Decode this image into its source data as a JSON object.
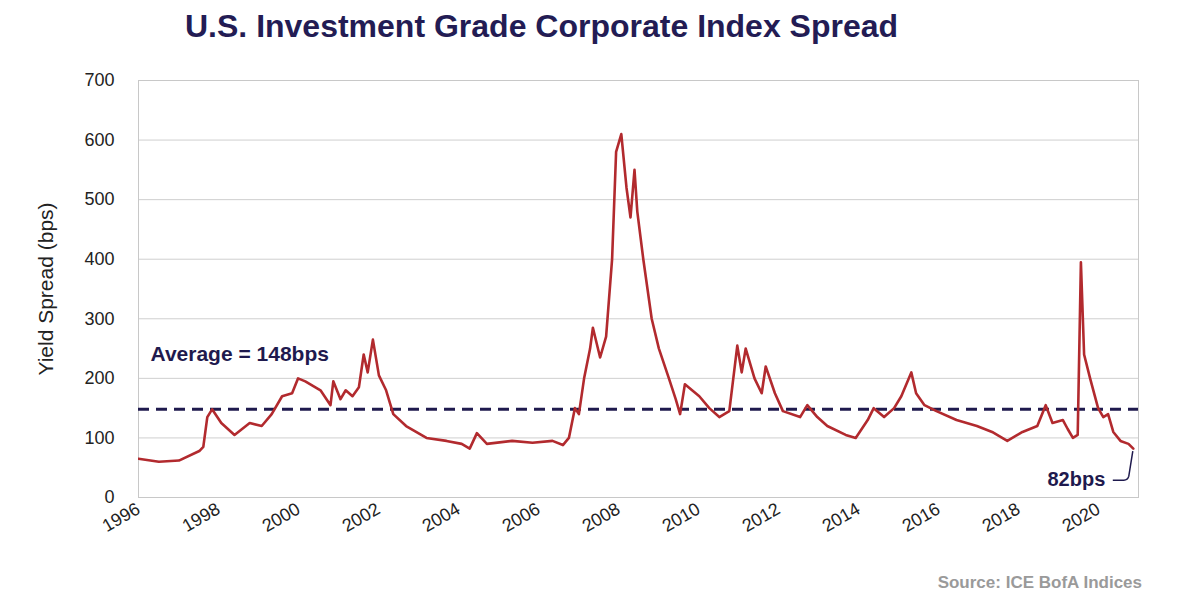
{
  "chart_data": {
    "type": "line",
    "title": "U.S. Investment Grade Corporate Index Spread",
    "y_label": "Yield Spread (bps)",
    "source": "Source: ICE BofA Indices",
    "color": "#b22a2e",
    "x": [
      1996.0,
      1996.51,
      1997.01,
      1997.52,
      1997.62,
      1997.72,
      1997.84,
      1998.07,
      1998.4,
      1998.78,
      1999.08,
      1999.33,
      1999.59,
      1999.84,
      1999.99,
      2000.17,
      2000.55,
      2000.8,
      2000.87,
      2001.05,
      2001.18,
      2001.35,
      2001.51,
      2001.63,
      2001.73,
      2001.86,
      2002.01,
      2002.19,
      2002.37,
      2002.69,
      2003.2,
      2003.7,
      2004.08,
      2004.28,
      2004.46,
      2004.71,
      2005.34,
      2005.85,
      2006.35,
      2006.61,
      2006.76,
      2006.91,
      2007.01,
      2007.14,
      2007.29,
      2007.36,
      2007.54,
      2007.69,
      2007.84,
      2007.94,
      2008.07,
      2008.2,
      2008.3,
      2008.4,
      2008.47,
      2008.62,
      2008.83,
      2009.01,
      2009.26,
      2009.43,
      2009.54,
      2009.66,
      2010.02,
      2010.27,
      2010.52,
      2010.77,
      2010.97,
      2011.08,
      2011.18,
      2011.4,
      2011.58,
      2011.68,
      2011.91,
      2012.11,
      2012.54,
      2012.72,
      2012.97,
      2013.22,
      2013.68,
      2013.93,
      2014.23,
      2014.38,
      2014.64,
      2014.89,
      2015.07,
      2015.32,
      2015.44,
      2015.65,
      2015.95,
      2016.45,
      2016.96,
      2017.34,
      2017.72,
      2018.1,
      2018.47,
      2018.68,
      2018.85,
      2019.11,
      2019.23,
      2019.36,
      2019.48,
      2019.56,
      2019.64,
      2019.79,
      2019.99,
      2020.12,
      2020.24,
      2020.37,
      2020.55,
      2020.75,
      2020.87
    ],
    "values": [
      65,
      60,
      62,
      78,
      85,
      135,
      148,
      125,
      105,
      125,
      120,
      140,
      170,
      175,
      200,
      195,
      180,
      155,
      195,
      165,
      180,
      170,
      185,
      240,
      210,
      265,
      205,
      180,
      140,
      120,
      100,
      95,
      90,
      82,
      108,
      90,
      95,
      92,
      95,
      88,
      100,
      150,
      140,
      200,
      250,
      285,
      235,
      270,
      400,
      580,
      610,
      520,
      470,
      550,
      480,
      400,
      300,
      250,
      200,
      165,
      140,
      190,
      170,
      150,
      135,
      145,
      255,
      210,
      250,
      200,
      175,
      220,
      175,
      145,
      135,
      155,
      135,
      120,
      105,
      100,
      130,
      150,
      135,
      150,
      170,
      210,
      175,
      155,
      145,
      130,
      120,
      110,
      95,
      110,
      120,
      155,
      125,
      130,
      115,
      100,
      105,
      395,
      240,
      200,
      150,
      135,
      140,
      110,
      95,
      90,
      82
    ],
    "xlim": [
      1996,
      2021
    ],
    "ylim": [
      0,
      700
    ],
    "xticks": [
      1996,
      1998,
      2000,
      2002,
      2004,
      2006,
      2008,
      2010,
      2012,
      2014,
      2016,
      2018,
      2020
    ],
    "yticks": [
      0,
      100,
      200,
      300,
      400,
      500,
      600,
      700
    ],
    "grid": true,
    "reference_line": {
      "value": 148,
      "label": "Average = 148bps",
      "line_style": "dashed",
      "color": "#1f1a4e"
    },
    "annotations": [
      {
        "text": "82bps",
        "x": 2020.87,
        "y": 82
      }
    ]
  }
}
